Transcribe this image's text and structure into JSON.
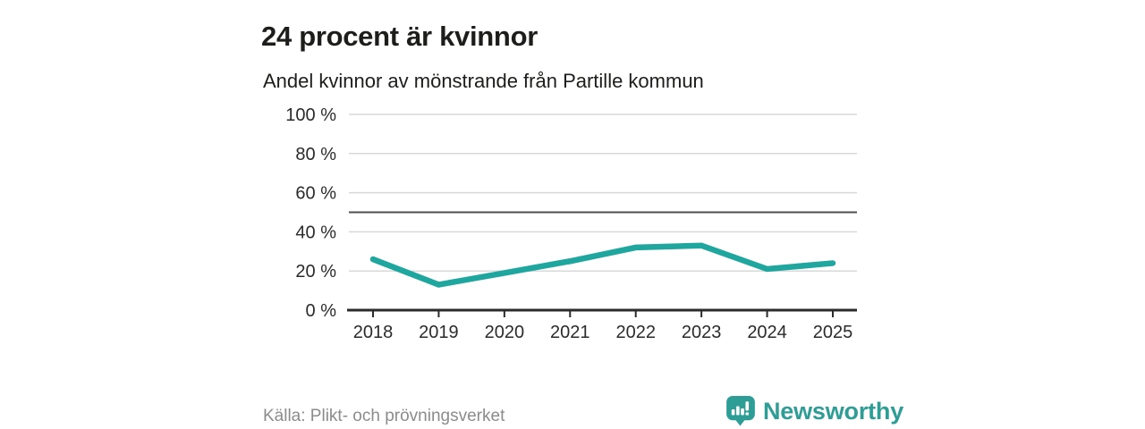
{
  "header": {
    "title": "24 procent är kvinnor",
    "subtitle": "Andel kvinnor av mönstrande från Partille kommun"
  },
  "chart_data": {
    "type": "line",
    "title": "Andel kvinnor av mönstrande från Partille kommun",
    "categories": [
      "2018",
      "2019",
      "2020",
      "2021",
      "2022",
      "2023",
      "2024",
      "2025"
    ],
    "series": [
      {
        "name": "Andel kvinnor av mönstrande",
        "values": [
          26,
          13,
          19,
          25,
          32,
          33,
          21,
          24
        ]
      }
    ],
    "xlabel": "",
    "ylabel": "",
    "ylim": [
      0,
      100
    ],
    "yticks": [
      0,
      20,
      40,
      60,
      80,
      100
    ],
    "ytick_suffix": " %",
    "reference_line": 50,
    "grid": true,
    "legend": "none"
  },
  "footer": {
    "source": "Källa: Plikt- och prövningsverket",
    "brand": "Newsworthy"
  },
  "colors": {
    "accent_line": "#1fa69e",
    "grid": "#d9d9d9",
    "reference_line": "#4f4f4f",
    "axis": "#2b2b2b",
    "text": "#1d1d1b",
    "muted": "#8c8c8c",
    "brand": "#2e9d95"
  }
}
